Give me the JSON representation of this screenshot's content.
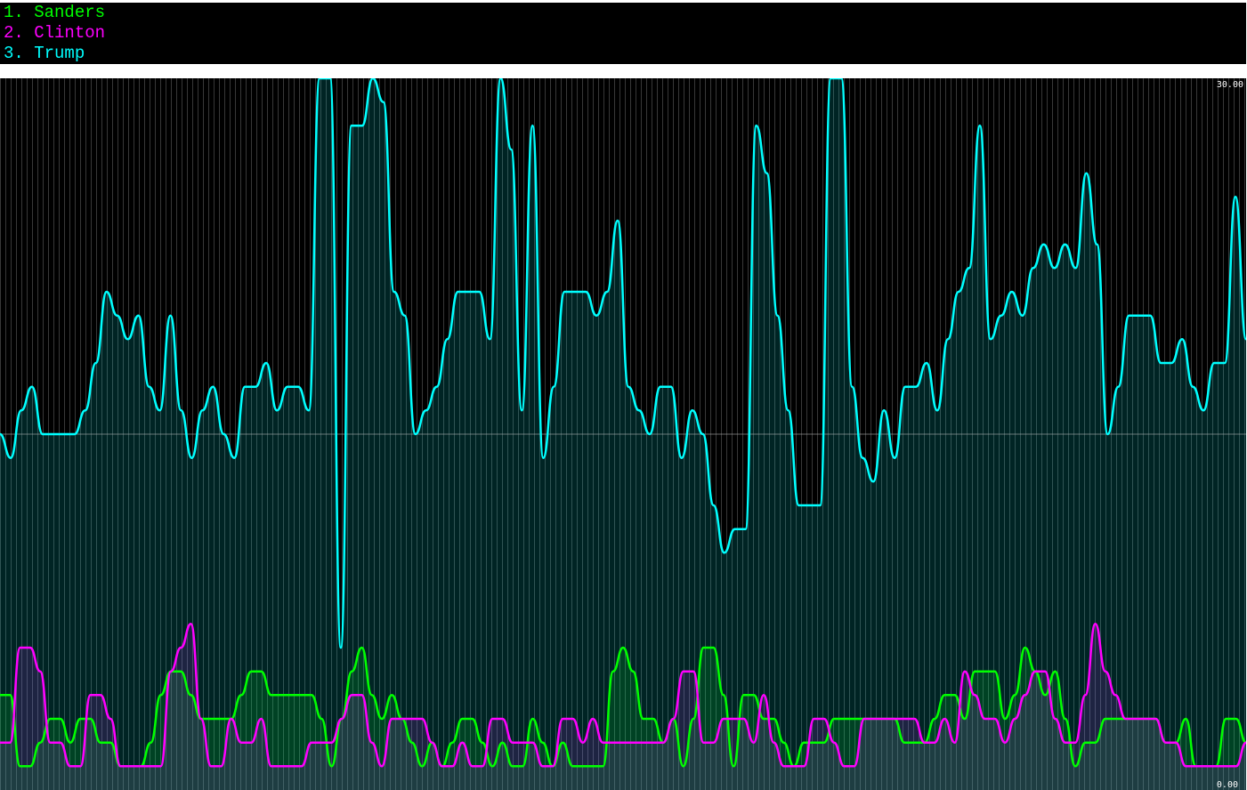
{
  "legend": [
    {
      "label": "1. Sanders",
      "color": "#00ff00"
    },
    {
      "label": "2. Clinton",
      "color": "#ff00ff"
    },
    {
      "label": "3. Trump",
      "color": "#00ffff"
    }
  ],
  "chart_data": {
    "type": "line",
    "ylim": [
      0,
      30
    ],
    "ymax_label": "30.00",
    "ymin_label": "0.00",
    "midline": 15,
    "grid": true,
    "fill": "area",
    "series": [
      {
        "name": "Sanders",
        "color": "#00ff00",
        "values": [
          4,
          4,
          1,
          1,
          2,
          3,
          3,
          2,
          3,
          3,
          2,
          2,
          1,
          1,
          1,
          2,
          4,
          5,
          5,
          4,
          3,
          3,
          3,
          3,
          4,
          5,
          5,
          4,
          4,
          4,
          4,
          4,
          3,
          1,
          3,
          5,
          6,
          4,
          3,
          4,
          3,
          2,
          1,
          2,
          1,
          2,
          3,
          3,
          2,
          1,
          2,
          1,
          1,
          3,
          2,
          1,
          2,
          1,
          1,
          1,
          1,
          5,
          6,
          5,
          3,
          3,
          2,
          3,
          1,
          3,
          6,
          6,
          4,
          1,
          4,
          4,
          3,
          3,
          2,
          1,
          2,
          2,
          2,
          3,
          3,
          3,
          3,
          3,
          3,
          3,
          2,
          2,
          2,
          3,
          4,
          4,
          3,
          5,
          5,
          5,
          3,
          4,
          6,
          5,
          4,
          5,
          3,
          1,
          2,
          2,
          3,
          3,
          3,
          3,
          3,
          3,
          2,
          2,
          3,
          1,
          1,
          1,
          3,
          3,
          2
        ]
      },
      {
        "name": "Clinton",
        "color": "#ff00ff",
        "values": [
          2,
          2,
          6,
          6,
          5,
          2,
          2,
          1,
          1,
          4,
          4,
          3,
          1,
          1,
          1,
          1,
          1,
          5,
          6,
          7,
          3,
          1,
          1,
          3,
          2,
          2,
          3,
          1,
          1,
          1,
          1,
          2,
          2,
          2,
          3,
          4,
          4,
          2,
          1,
          3,
          3,
          3,
          3,
          2,
          1,
          1,
          2,
          1,
          1,
          3,
          3,
          2,
          2,
          2,
          1,
          1,
          3,
          3,
          2,
          3,
          2,
          2,
          2,
          2,
          2,
          2,
          2,
          3,
          5,
          5,
          2,
          2,
          3,
          3,
          3,
          2,
          4,
          2,
          1,
          1,
          1,
          3,
          3,
          2,
          1,
          1,
          3,
          3,
          3,
          3,
          3,
          3,
          2,
          2,
          3,
          2,
          5,
          4,
          3,
          3,
          2,
          3,
          4,
          5,
          5,
          3,
          2,
          2,
          4,
          7,
          5,
          4,
          3,
          3,
          3,
          3,
          2,
          2,
          1,
          1,
          1,
          1,
          1,
          1,
          2
        ]
      },
      {
        "name": "Trump",
        "color": "#00ffff",
        "values": [
          15,
          14,
          16,
          17,
          15,
          15,
          15,
          15,
          16,
          18,
          21,
          20,
          19,
          20,
          17,
          16,
          20,
          16,
          14,
          16,
          17,
          15,
          14,
          17,
          17,
          18,
          16,
          17,
          17,
          16,
          30,
          30,
          6,
          28,
          28,
          30,
          29,
          21,
          20,
          15,
          16,
          17,
          19,
          21,
          21,
          21,
          19,
          30,
          27,
          16,
          28,
          14,
          17,
          21,
          21,
          21,
          20,
          21,
          24,
          17,
          16,
          15,
          17,
          17,
          14,
          16,
          15,
          12,
          10,
          11,
          11,
          28,
          26,
          20,
          16,
          12,
          12,
          12,
          30,
          30,
          17,
          14,
          13,
          16,
          14,
          17,
          17,
          18,
          16,
          19,
          21,
          22,
          28,
          19,
          20,
          21,
          20,
          22,
          23,
          22,
          23,
          22,
          26,
          23,
          15,
          17,
          20,
          20,
          20,
          18,
          18,
          19,
          17,
          16,
          18,
          18,
          25,
          19
        ]
      }
    ]
  }
}
